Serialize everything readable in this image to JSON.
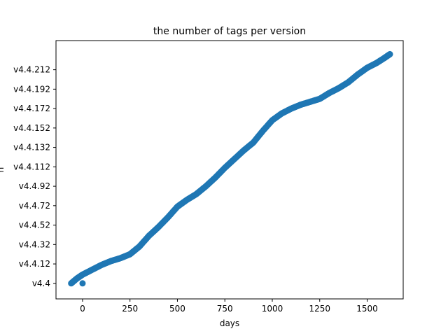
{
  "chart_data": {
    "type": "scatter",
    "title": "the number of tags per version",
    "xlabel": "days",
    "ylabel": "n",
    "xlim": [
      -140,
      1690
    ],
    "ylim": [
      -0.8,
      12.5
    ],
    "x_ticks": [
      {
        "value": 0,
        "label": "0"
      },
      {
        "value": 250,
        "label": "250"
      },
      {
        "value": 500,
        "label": "500"
      },
      {
        "value": 750,
        "label": "750"
      },
      {
        "value": 1000,
        "label": "1000"
      },
      {
        "value": 1250,
        "label": "1250"
      },
      {
        "value": 1500,
        "label": "1500"
      }
    ],
    "y_ticks": [
      {
        "value": 0,
        "label": "v4.4"
      },
      {
        "value": 1,
        "label": "v4.4.12"
      },
      {
        "value": 2,
        "label": "v4.4.32"
      },
      {
        "value": 3,
        "label": "v4.4.52"
      },
      {
        "value": 4,
        "label": "v4.4.72"
      },
      {
        "value": 5,
        "label": "v4.4.92"
      },
      {
        "value": 6,
        "label": "v4.4.112"
      },
      {
        "value": 7,
        "label": "v4.4.132"
      },
      {
        "value": 8,
        "label": "v4.4.152"
      },
      {
        "value": 9,
        "label": "v4.4.172"
      },
      {
        "value": 10,
        "label": "v4.4.192"
      },
      {
        "value": 11,
        "label": "v4.4.212"
      }
    ],
    "marker_color": "#1f77b4",
    "curve": [
      [
        -60,
        0.0
      ],
      [
        -30,
        0.25
      ],
      [
        0,
        0.45
      ],
      [
        50,
        0.7
      ],
      [
        100,
        0.95
      ],
      [
        150,
        1.15
      ],
      [
        200,
        1.3
      ],
      [
        250,
        1.5
      ],
      [
        300,
        1.9
      ],
      [
        350,
        2.45
      ],
      [
        400,
        2.9
      ],
      [
        450,
        3.4
      ],
      [
        500,
        3.95
      ],
      [
        550,
        4.3
      ],
      [
        600,
        4.6
      ],
      [
        650,
        5.0
      ],
      [
        700,
        5.45
      ],
      [
        750,
        5.95
      ],
      [
        800,
        6.4
      ],
      [
        850,
        6.85
      ],
      [
        900,
        7.25
      ],
      [
        950,
        7.85
      ],
      [
        1000,
        8.4
      ],
      [
        1050,
        8.75
      ],
      [
        1100,
        9.0
      ],
      [
        1150,
        9.2
      ],
      [
        1200,
        9.35
      ],
      [
        1250,
        9.5
      ],
      [
        1300,
        9.8
      ],
      [
        1350,
        10.05
      ],
      [
        1400,
        10.35
      ],
      [
        1450,
        10.75
      ],
      [
        1500,
        11.1
      ],
      [
        1550,
        11.35
      ],
      [
        1590,
        11.6
      ],
      [
        1620,
        11.8
      ]
    ],
    "outliers": [
      [
        0,
        0.0
      ]
    ]
  }
}
